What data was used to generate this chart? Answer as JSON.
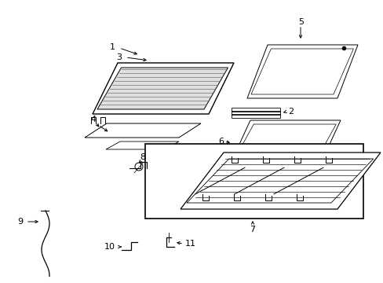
{
  "bg_color": "#ffffff",
  "lc": "#000000",
  "lw": 0.7,
  "fig_w": 4.89,
  "fig_h": 3.6,
  "dpi": 100
}
